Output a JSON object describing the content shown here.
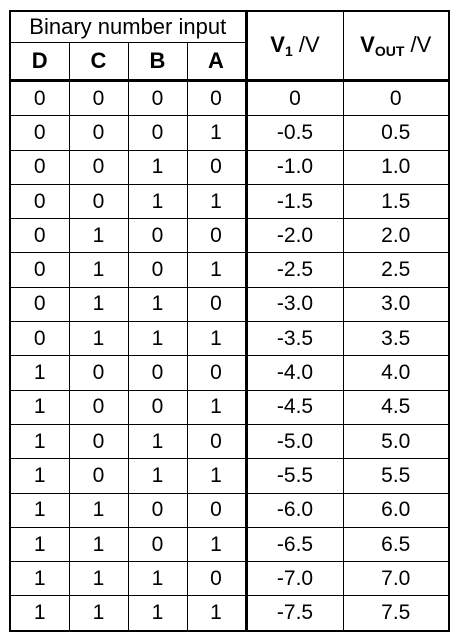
{
  "table": {
    "group_header": "Binary number input",
    "bit_headers": [
      "D",
      "C",
      "B",
      "A"
    ],
    "v1_header": {
      "symbol": "V",
      "sub": "1",
      "unit": " /V"
    },
    "vout_header": {
      "symbol": "V",
      "sub": "OUT",
      "unit": " /V"
    },
    "rows": [
      [
        "0",
        "0",
        "0",
        "0",
        "0",
        "0"
      ],
      [
        "0",
        "0",
        "0",
        "1",
        "-0.5",
        "0.5"
      ],
      [
        "0",
        "0",
        "1",
        "0",
        "-1.0",
        "1.0"
      ],
      [
        "0",
        "0",
        "1",
        "1",
        "-1.5",
        "1.5"
      ],
      [
        "0",
        "1",
        "0",
        "0",
        "-2.0",
        "2.0"
      ],
      [
        "0",
        "1",
        "0",
        "1",
        "-2.5",
        "2.5"
      ],
      [
        "0",
        "1",
        "1",
        "0",
        "-3.0",
        "3.0"
      ],
      [
        "0",
        "1",
        "1",
        "1",
        "-3.5",
        "3.5"
      ],
      [
        "1",
        "0",
        "0",
        "0",
        "-4.0",
        "4.0"
      ],
      [
        "1",
        "0",
        "0",
        "1",
        "-4.5",
        "4.5"
      ],
      [
        "1",
        "0",
        "1",
        "0",
        "-5.0",
        "5.0"
      ],
      [
        "1",
        "0",
        "1",
        "1",
        "-5.5",
        "5.5"
      ],
      [
        "1",
        "1",
        "0",
        "0",
        "-6.0",
        "6.0"
      ],
      [
        "1",
        "1",
        "0",
        "1",
        "-6.5",
        "6.5"
      ],
      [
        "1",
        "1",
        "1",
        "0",
        "-7.0",
        "7.0"
      ],
      [
        "1",
        "1",
        "1",
        "1",
        "-7.5",
        "7.5"
      ]
    ]
  }
}
